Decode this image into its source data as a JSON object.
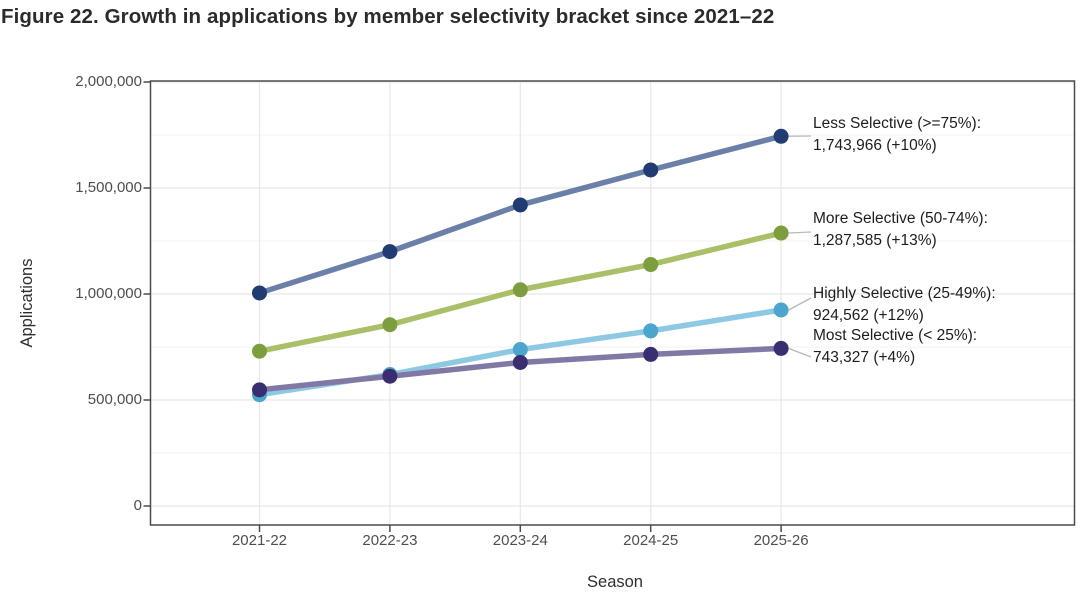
{
  "title": "Figure 22. Growth in applications by member selectivity bracket since 2021–22",
  "chart_data": {
    "type": "line",
    "title": "Figure 22. Growth in applications by member selectivity bracket since 2021–22",
    "xlabel": "Season",
    "ylabel": "Applications",
    "categories": [
      "2021-22",
      "2022-23",
      "2023-24",
      "2024-25",
      "2025-26"
    ],
    "y_axis": {
      "range": [
        0,
        2000000
      ],
      "ticks": [
        {
          "value": 0,
          "label": "0"
        },
        {
          "value": 500000,
          "label": "500,000"
        },
        {
          "value": 1000000,
          "label": "1,000,000"
        },
        {
          "value": 1500000,
          "label": "1,500,000"
        },
        {
          "value": 2000000,
          "label": "2,000,000"
        }
      ],
      "minor_ticks": [
        250000,
        750000,
        1250000,
        1750000
      ]
    },
    "grid": true,
    "legend_position": "right-annotations",
    "colors": {
      "grid_major": "#e8e8e8",
      "grid_minor": "#f3f3f3",
      "panel_border": "#4b4b4b",
      "leader_line": "#b8b8b8"
    },
    "series": [
      {
        "name": "Less Selective (>=75%)",
        "values": [
          1005000,
          1200000,
          1420000,
          1585000,
          1743966
        ],
        "line_color": "#6a80a8",
        "point_color": "#203c72",
        "annotation": {
          "name_line": "Less Selective (>=75%):",
          "value_line": "1,743,966 (+10%)"
        }
      },
      {
        "name": "More Selective (50-74%)",
        "values": [
          730000,
          855000,
          1020000,
          1139000,
          1287585
        ],
        "line_color": "#a9bf68",
        "point_color": "#7d9e3f",
        "annotation": {
          "name_line": "More Selective (50-74%):",
          "value_line": "1,287,585 (+13%)"
        }
      },
      {
        "name": "Highly Selective (25-49%)",
        "values": [
          525000,
          620000,
          738000,
          826000,
          924562
        ],
        "line_color": "#8ec9e4",
        "point_color": "#4ba5cc",
        "annotation": {
          "name_line": "Highly Selective (25-49%):",
          "value_line": "924,562 (+12%)"
        }
      },
      {
        "name": "Most Selective (< 25%)",
        "values": [
          548000,
          612000,
          677000,
          715000,
          743327
        ],
        "line_color": "#8278a6",
        "point_color": "#3a2d70",
        "annotation": {
          "name_line": "Most Selective (< 25%):",
          "value_line": "743,327 (+4%)"
        }
      }
    ]
  }
}
